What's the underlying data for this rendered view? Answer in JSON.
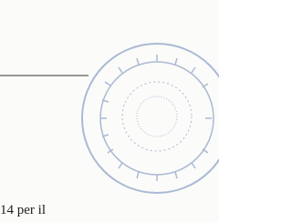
{
  "body": {
    "text": "14 per il"
  }
}
